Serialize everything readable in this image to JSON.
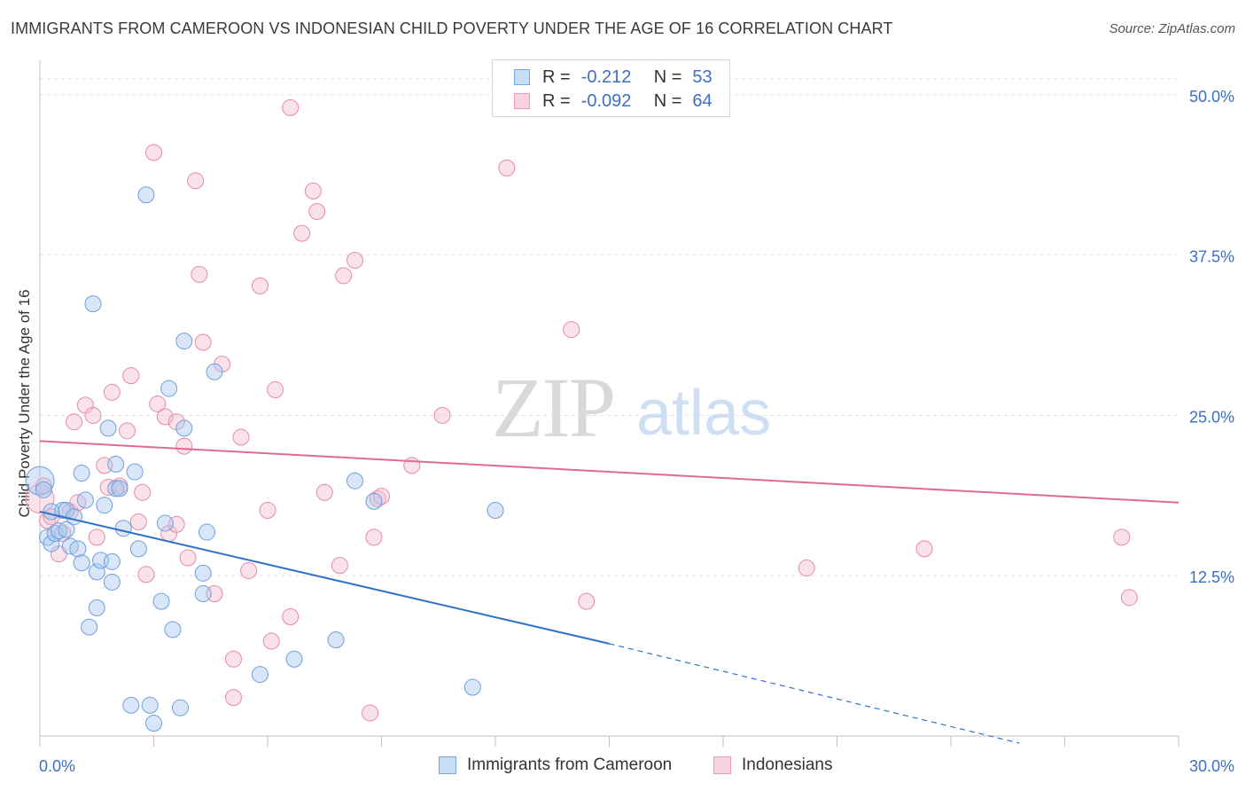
{
  "title": "IMMIGRANTS FROM CAMEROON VS INDONESIAN CHILD POVERTY UNDER THE AGE OF 16 CORRELATION CHART",
  "source": "Source: ZipAtlas.com",
  "watermark": {
    "zip": "ZIP",
    "atlas": "atlas"
  },
  "colors": {
    "blue_fill": "#a9c8f0",
    "blue_stroke": "#6f9fdc",
    "blue_line": "#2f72cc",
    "pink_fill": "#f5bfd0",
    "pink_stroke": "#e68aa8",
    "pink_line": "#e06a92",
    "axis_label": "#3a6fc4"
  },
  "legend": {
    "rows": [
      {
        "r_label": "R =",
        "r_value": "-0.212",
        "n_label": "N =",
        "n_value": "53"
      },
      {
        "r_label": "R =",
        "r_value": "-0.092",
        "n_label": "N =",
        "n_value": "64"
      }
    ]
  },
  "chart_data": {
    "type": "scatter",
    "xlabel": "",
    "ylabel": "Child Poverty Under the Age of 16",
    "xlim": [
      0,
      30
    ],
    "ylim": [
      0,
      52
    ],
    "x_tick_labels": [
      "0.0%",
      "30.0%"
    ],
    "y_ticks": [
      12.5,
      25.0,
      37.5,
      50.0
    ],
    "y_tick_labels": [
      "12.5%",
      "25.0%",
      "37.5%",
      "50.0%"
    ],
    "grid": true,
    "legend_position": "top-center",
    "series": [
      {
        "name": "Immigrants from Cameroon",
        "color": "blue",
        "trend": {
          "x0": 0.0,
          "y0": 17.5,
          "x1": 15.0,
          "y1": 7.2,
          "dash_to_x": 30.0,
          "dash_to_y": -2.8
        },
        "points": [
          [
            0.0,
            19.9
          ],
          [
            0.1,
            19.2
          ],
          [
            0.2,
            15.5
          ],
          [
            0.3,
            15.0
          ],
          [
            0.3,
            17.5
          ],
          [
            0.4,
            15.8
          ],
          [
            0.5,
            16.0
          ],
          [
            0.6,
            17.6
          ],
          [
            0.7,
            17.6
          ],
          [
            0.7,
            16.1
          ],
          [
            0.8,
            14.8
          ],
          [
            0.9,
            17.1
          ],
          [
            1.0,
            14.6
          ],
          [
            1.1,
            13.5
          ],
          [
            1.1,
            20.5
          ],
          [
            1.2,
            18.4
          ],
          [
            1.3,
            8.5
          ],
          [
            1.4,
            33.7
          ],
          [
            1.5,
            12.8
          ],
          [
            1.5,
            10.0
          ],
          [
            1.6,
            13.7
          ],
          [
            1.7,
            18.0
          ],
          [
            1.8,
            24.0
          ],
          [
            1.9,
            12.0
          ],
          [
            1.9,
            13.6
          ],
          [
            2.0,
            19.3
          ],
          [
            2.0,
            21.2
          ],
          [
            2.1,
            19.3
          ],
          [
            2.2,
            16.2
          ],
          [
            2.4,
            2.4
          ],
          [
            2.5,
            20.6
          ],
          [
            2.6,
            14.6
          ],
          [
            2.8,
            42.2
          ],
          [
            2.9,
            2.4
          ],
          [
            3.0,
            1.0
          ],
          [
            3.2,
            10.5
          ],
          [
            3.3,
            16.6
          ],
          [
            3.4,
            27.1
          ],
          [
            3.5,
            8.3
          ],
          [
            3.7,
            2.2
          ],
          [
            3.8,
            24.0
          ],
          [
            3.8,
            30.8
          ],
          [
            4.3,
            11.1
          ],
          [
            4.3,
            12.7
          ],
          [
            4.4,
            15.9
          ],
          [
            4.6,
            28.4
          ],
          [
            5.8,
            4.8
          ],
          [
            6.7,
            6.0
          ],
          [
            7.8,
            7.5
          ],
          [
            8.3,
            19.9
          ],
          [
            8.8,
            18.3
          ],
          [
            11.4,
            3.8
          ],
          [
            12.0,
            17.6
          ]
        ]
      },
      {
        "name": "Indonesians",
        "color": "pink",
        "trend": {
          "x0": 0.0,
          "y0": 23.0,
          "x1": 30.0,
          "y1": 18.2
        },
        "points": [
          [
            0.0,
            18.5
          ],
          [
            0.2,
            16.8
          ],
          [
            0.3,
            17.1
          ],
          [
            0.5,
            14.2
          ],
          [
            0.6,
            15.8
          ],
          [
            0.8,
            17.5
          ],
          [
            0.9,
            24.5
          ],
          [
            1.0,
            18.2
          ],
          [
            1.2,
            25.8
          ],
          [
            1.4,
            25.0
          ],
          [
            1.5,
            15.5
          ],
          [
            1.7,
            21.1
          ],
          [
            1.8,
            19.4
          ],
          [
            1.9,
            26.8
          ],
          [
            2.1,
            19.5
          ],
          [
            2.3,
            23.8
          ],
          [
            2.4,
            28.1
          ],
          [
            2.6,
            16.7
          ],
          [
            2.7,
            19.0
          ],
          [
            2.8,
            12.6
          ],
          [
            3.0,
            45.5
          ],
          [
            3.1,
            25.9
          ],
          [
            3.3,
            24.9
          ],
          [
            3.4,
            15.8
          ],
          [
            3.6,
            24.5
          ],
          [
            3.6,
            16.5
          ],
          [
            3.8,
            22.6
          ],
          [
            3.9,
            13.9
          ],
          [
            4.1,
            43.3
          ],
          [
            4.2,
            36.0
          ],
          [
            4.3,
            30.7
          ],
          [
            4.6,
            11.1
          ],
          [
            4.8,
            29.0
          ],
          [
            5.1,
            3.0
          ],
          [
            5.1,
            6.0
          ],
          [
            5.3,
            23.3
          ],
          [
            5.5,
            12.9
          ],
          [
            5.8,
            35.1
          ],
          [
            6.0,
            17.6
          ],
          [
            6.1,
            7.4
          ],
          [
            6.2,
            27.0
          ],
          [
            6.6,
            9.3
          ],
          [
            6.6,
            49.0
          ],
          [
            6.9,
            39.2
          ],
          [
            7.2,
            42.5
          ],
          [
            7.3,
            40.9
          ],
          [
            7.5,
            19.0
          ],
          [
            7.9,
            13.3
          ],
          [
            8.0,
            35.9
          ],
          [
            8.3,
            37.1
          ],
          [
            8.7,
            1.8
          ],
          [
            8.8,
            15.5
          ],
          [
            8.9,
            18.5
          ],
          [
            9.0,
            18.7
          ],
          [
            9.8,
            21.1
          ],
          [
            10.6,
            25.0
          ],
          [
            12.3,
            44.3
          ],
          [
            14.0,
            31.7
          ],
          [
            14.4,
            10.5
          ],
          [
            20.2,
            13.1
          ],
          [
            23.3,
            14.6
          ],
          [
            28.5,
            15.5
          ],
          [
            28.7,
            10.8
          ],
          [
            0.1,
            19.5
          ]
        ]
      }
    ]
  }
}
